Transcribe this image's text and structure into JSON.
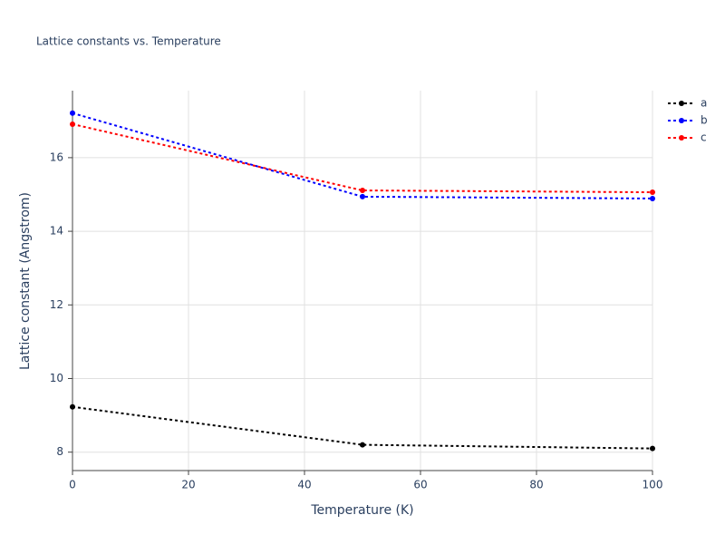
{
  "chart_data": {
    "type": "line",
    "title": "Lattice constants vs. Temperature",
    "x_label": "Temperature (K)",
    "y_label": "Lattice constant (Angstrom)",
    "x": [
      0,
      50,
      100
    ],
    "series": [
      {
        "name": "a",
        "color": "#000000",
        "values": [
          9.23,
          8.2,
          8.1
        ]
      },
      {
        "name": "b",
        "color": "#0000ff",
        "values": [
          17.21,
          14.94,
          14.89
        ]
      },
      {
        "name": "c",
        "color": "#ff0000",
        "values": [
          16.91,
          15.11,
          15.06
        ]
      }
    ],
    "xlim": [
      0,
      100
    ],
    "xticks": [
      0,
      20,
      40,
      60,
      80,
      100
    ],
    "ylim": [
      7.5,
      17.82
    ],
    "yticks": [
      8,
      10,
      12,
      14,
      16
    ],
    "grid": true,
    "legend": "top-right",
    "line_dash": "dot"
  }
}
